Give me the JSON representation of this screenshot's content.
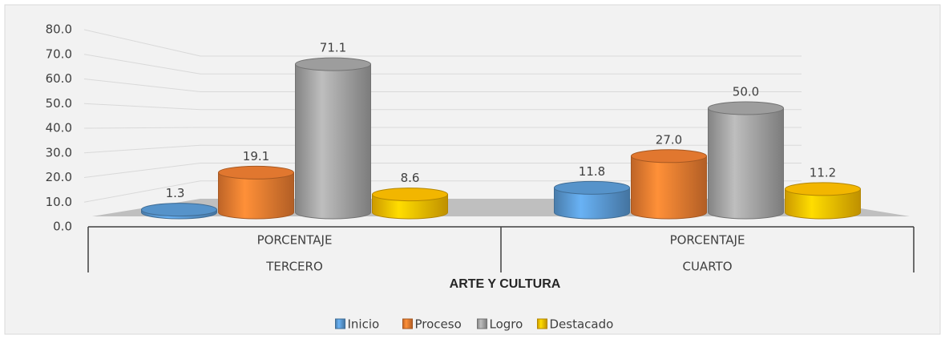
{
  "chart_data": {
    "type": "bar3d",
    "x_label": "ARTE Y CULTURA",
    "categories": [
      [
        "PORCENTAJE",
        "TERCERO"
      ],
      [
        "PORCENTAJE",
        "CUARTO"
      ]
    ],
    "series": [
      {
        "name": "Inicio",
        "color": "#5b9bd5",
        "values": [
          1.3,
          11.8
        ]
      },
      {
        "name": "Proceso",
        "color": "#ed7d31",
        "values": [
          19.1,
          27.0
        ],
        "value_labels": [
          "19.1",
          "27.0"
        ]
      },
      {
        "name": "Logro",
        "color": "#a5a5a5",
        "values": [
          71.1,
          50.0
        ],
        "value_labels": [
          "71.1",
          "50.0"
        ]
      },
      {
        "name": "Destacado",
        "color": "#ffc000",
        "values": [
          8.6,
          11.2
        ]
      }
    ],
    "ylim": [
      0,
      80
    ],
    "yticks": [
      {
        "value": 0,
        "label": "0.0"
      },
      {
        "value": 10,
        "label": "10.0"
      },
      {
        "value": 20,
        "label": "20.0"
      },
      {
        "value": 30,
        "label": "30.0"
      },
      {
        "value": 40,
        "label": "40.0"
      },
      {
        "value": 50,
        "label": "50.0"
      },
      {
        "value": 60,
        "label": "60.0"
      },
      {
        "value": 70,
        "label": "70.0"
      },
      {
        "value": 80,
        "label": "80.0"
      }
    ],
    "grid": true,
    "legend": "bottom"
  }
}
